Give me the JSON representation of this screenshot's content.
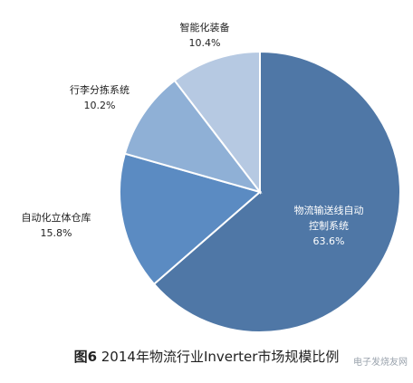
{
  "chart_data": {
    "type": "pie",
    "slices": [
      {
        "label_lines": [
          "物流输送线自动",
          "控制系统"
        ],
        "value": 63.6,
        "display": "63.6%",
        "color": "#4f77a6",
        "label_color": "#ffffff"
      },
      {
        "label_lines": [
          "自动化立体仓库"
        ],
        "value": 15.8,
        "display": "15.8%",
        "color": "#5b8bc2",
        "label_color": "#222222"
      },
      {
        "label_lines": [
          "行李分拣系统"
        ],
        "value": 10.2,
        "display": "10.2%",
        "color": "#8fb0d6",
        "label_color": "#222222"
      },
      {
        "label_lines": [
          "智能化装备"
        ],
        "value": 10.4,
        "display": "10.4%",
        "color": "#b6c9e2",
        "label_color": "#222222"
      }
    ]
  },
  "caption": {
    "figure_no": "图6",
    "text": " 2014年物流行业Inverter市场规模比例"
  },
  "watermark": "电子发烧友网"
}
